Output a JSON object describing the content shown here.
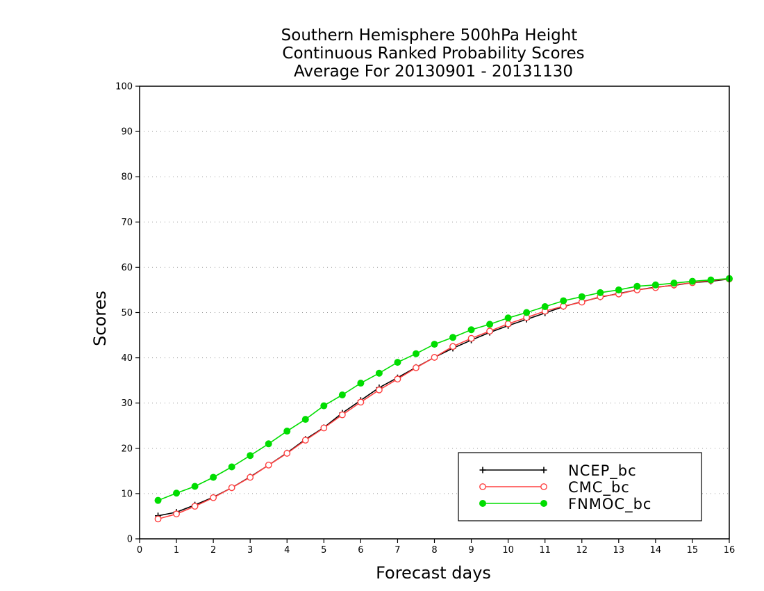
{
  "chart_data": {
    "type": "line",
    "title": [
      "Southern Hemisphere 500hPa Height",
      "Continuous Ranked Probability Scores",
      "Average For 20130901 - 20131130"
    ],
    "xlabel": "Forecast days",
    "ylabel": "Scores",
    "xlim": [
      0,
      16
    ],
    "ylim": [
      0,
      100
    ],
    "xticks": [
      0,
      1,
      2,
      3,
      4,
      5,
      6,
      7,
      8,
      9,
      10,
      11,
      12,
      13,
      14,
      15,
      16
    ],
    "yticks": [
      0,
      10,
      20,
      30,
      40,
      50,
      60,
      70,
      80,
      90,
      100
    ],
    "grid": "horizontal dotted",
    "legend_position": "bottom-right",
    "x": [
      0.5,
      1,
      1.5,
      2,
      2.5,
      3,
      3.5,
      4,
      4.5,
      5,
      5.5,
      6,
      6.5,
      7,
      7.5,
      8,
      8.5,
      9,
      9.5,
      10,
      10.5,
      11,
      11.5,
      12,
      12.5,
      13,
      13.5,
      14,
      14.5,
      15,
      15.5,
      16
    ],
    "series": [
      {
        "name": "NCEP_bc",
        "color": "#000000",
        "marker": "plus",
        "values": [
          5.1,
          5.9,
          7.5,
          9.2,
          11.3,
          13.7,
          16.3,
          19.0,
          22.0,
          24.6,
          27.8,
          30.6,
          33.4,
          35.6,
          37.9,
          40.1,
          42.1,
          43.9,
          45.6,
          47.1,
          48.5,
          49.9,
          51.3,
          52.4,
          53.4,
          54.2,
          55.0,
          55.6,
          56.0,
          56.6,
          56.9,
          57.4
        ]
      },
      {
        "name": "CMC_bc",
        "color": "#ff4040",
        "marker": "open-circle",
        "values": [
          4.4,
          5.5,
          7.2,
          9.1,
          11.3,
          13.6,
          16.3,
          18.9,
          21.8,
          24.5,
          27.4,
          30.2,
          32.9,
          35.3,
          37.8,
          40.1,
          42.5,
          44.3,
          45.9,
          47.5,
          48.9,
          50.3,
          51.4,
          52.3,
          53.5,
          54.1,
          55.0,
          55.5,
          56.1,
          56.6,
          57.1,
          57.4
        ]
      },
      {
        "name": "FNMOC_bc",
        "color": "#00dd00",
        "marker": "filled-circle",
        "values": [
          8.5,
          10.1,
          11.6,
          13.6,
          15.9,
          18.4,
          21.0,
          23.8,
          26.4,
          29.4,
          31.8,
          34.4,
          36.6,
          39.0,
          40.9,
          43.0,
          44.5,
          46.2,
          47.4,
          48.8,
          50.0,
          51.3,
          52.6,
          53.5,
          54.4,
          55.0,
          55.8,
          56.1,
          56.5,
          56.9,
          57.2,
          57.5
        ]
      }
    ]
  }
}
